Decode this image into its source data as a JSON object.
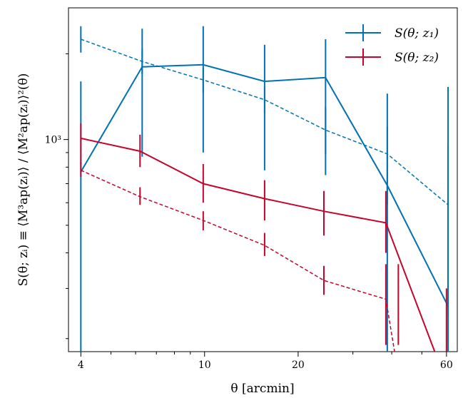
{
  "chart_data": {
    "type": "line",
    "xlabel": "θ [arcmin]",
    "ylabel": "S(θ; zᵢ) ≡ ⟨M³ap(zᵢ)⟩ / ⟨M²ap(zᵢ)⟩²(θ)",
    "xscale": "log",
    "yscale": "log",
    "xlim": [
      3.65,
      65
    ],
    "ylim": [
      180,
      2900
    ],
    "x_ticks": [
      4,
      10,
      20,
      60
    ],
    "x_tick_labels": [
      "4",
      "10",
      "20",
      "60"
    ],
    "y_ticks": [
      1000
    ],
    "y_tick_labels": [
      "10³"
    ],
    "grid": false,
    "legend_position": "top-right",
    "colors": {
      "z1": "#0072b2",
      "z2": "#c4052c"
    },
    "series": [
      {
        "name": "S(θ; z₁)",
        "style": "solid",
        "color": "#0072b2",
        "x": [
          4.0,
          6.3,
          9.9,
          15.6,
          24.5,
          38.7,
          60.7
        ],
        "y": [
          770,
          1800,
          1830,
          1600,
          1650,
          690,
          260
        ],
        "yerr_low": [
          180,
          870,
          900,
          780,
          750,
          180,
          180
        ],
        "yerr_high": [
          1600,
          2450,
          2500,
          2150,
          2250,
          1450,
          1530
        ]
      },
      {
        "name": "",
        "style": "dashed",
        "color": "#0072b2",
        "x": [
          4.0,
          6.3,
          9.9,
          15.6,
          24.5,
          38.7,
          60.7
        ],
        "y": [
          2250,
          1880,
          1620,
          1380,
          1080,
          890,
          590
        ],
        "yerr_low": [
          2020,
          1700,
          1460,
          1240,
          890,
          590,
          240
        ],
        "yerr_high": [
          2500,
          2080,
          1790,
          1530,
          1300,
          1110,
          950
        ]
      },
      {
        "name": "S(θ; z₂)",
        "style": "solid",
        "color": "#c4052c",
        "x": [
          4.0,
          6.2,
          9.9,
          15.6,
          24.2,
          38.3,
          60.0
        ],
        "y": [
          1010,
          910,
          700,
          620,
          560,
          510,
          140
        ],
        "yerr_low": [
          820,
          800,
          600,
          520,
          460,
          400,
          160
        ],
        "yerr_high": [
          1140,
          1040,
          820,
          720,
          660,
          660,
          300
        ]
      },
      {
        "name": "",
        "style": "dashed",
        "color": "#c4052c",
        "x": [
          4.0,
          6.2,
          9.9,
          15.6,
          24.2,
          38.3,
          42.0
        ],
        "y": [
          780,
          630,
          520,
          425,
          320,
          275,
          150
        ],
        "yerr_low": [
          740,
          590,
          480,
          390,
          285,
          190,
          190
        ],
        "yerr_high": [
          830,
          680,
          560,
          470,
          360,
          365,
          365
        ]
      }
    ]
  }
}
